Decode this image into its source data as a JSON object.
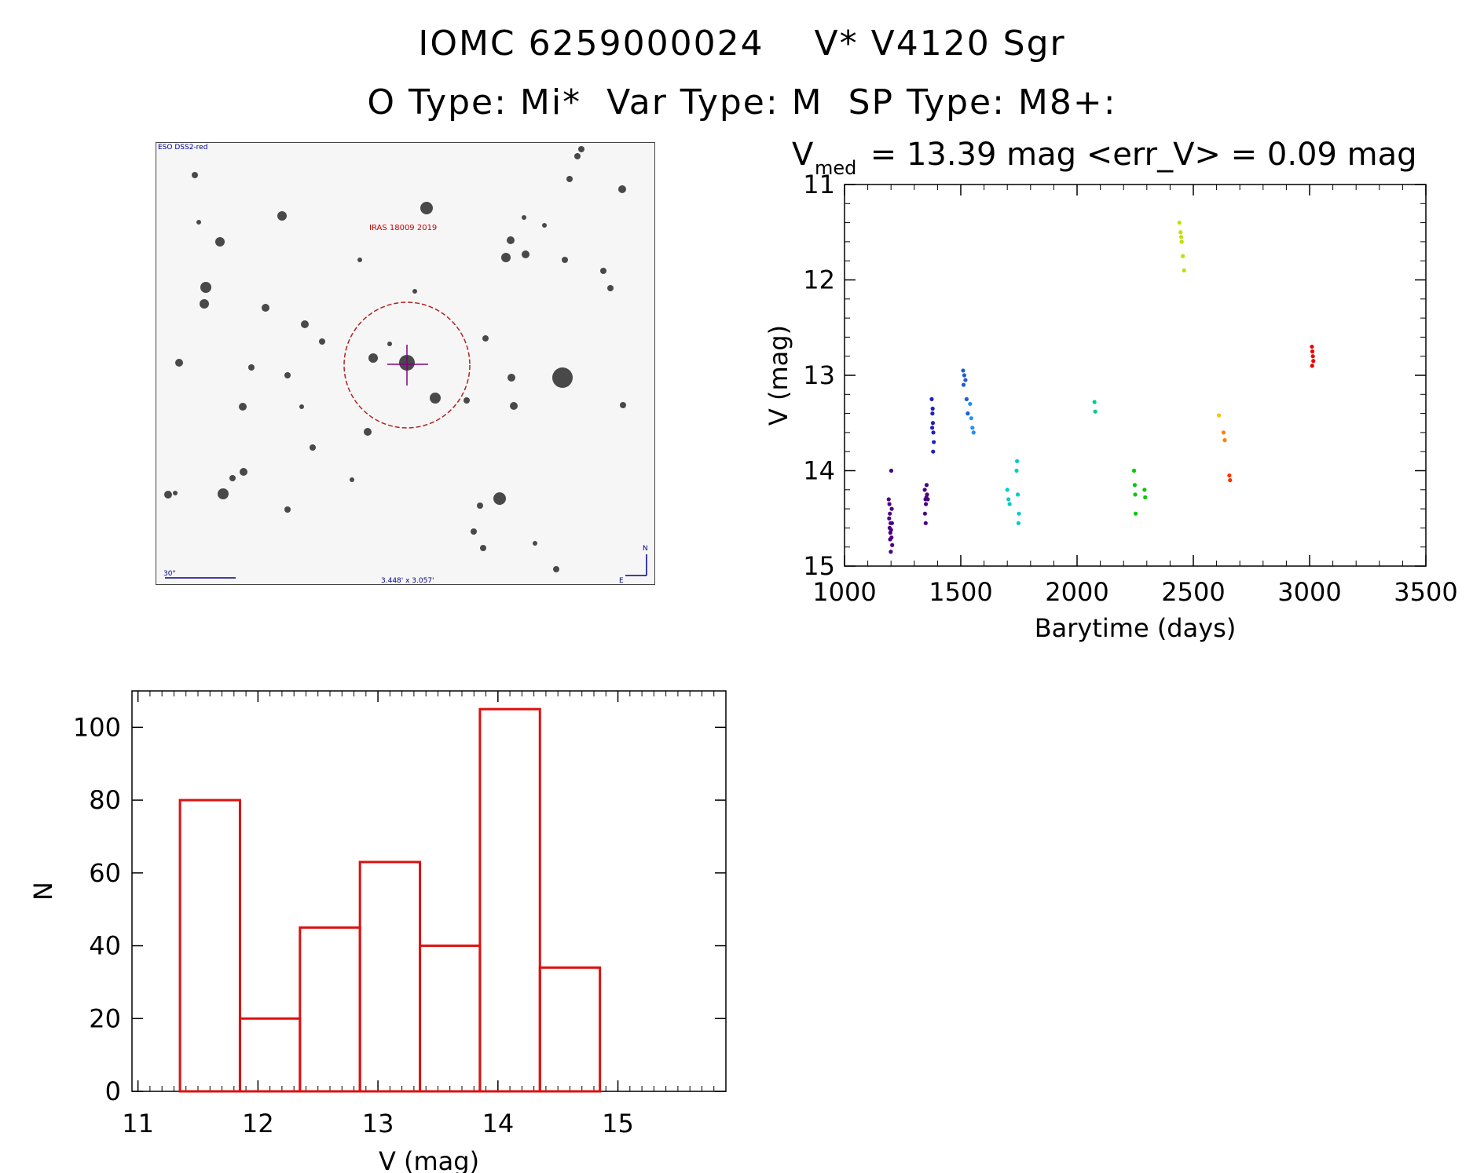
{
  "header": {
    "line1": "IOMC 6259000024    V* V4120 Sgr",
    "line2": "O Type: Mi*  Var Type: M  SP Type: M8+:"
  },
  "finder_chart": {
    "survey_label": "ESO DSS2-red",
    "target_label": "IRAS 18009 2019",
    "scale_label": "30\"",
    "fov_label": "3.448' x 3.057'",
    "north_label": "N",
    "east_label": "E",
    "colors": {
      "circle": "#b22222",
      "crosshair": "#800080",
      "labels": "#00008b",
      "target_text": "#cc0000"
    }
  },
  "chart_data": [
    {
      "type": "scatter",
      "title_main": "V",
      "title_sub": "med",
      "title_rest": " = 13.39 mag <err_V> = 0.09 mag",
      "xlabel": "Barytime (days)",
      "ylabel": "V (mag)",
      "xlim": [
        1000,
        3500
      ],
      "ylim": [
        15,
        11
      ],
      "xticks": [
        "1000",
        "1500",
        "2000",
        "2500",
        "3000",
        "3500"
      ],
      "yticks": [
        "11",
        "12",
        "13",
        "14",
        "15"
      ],
      "groups": [
        {
          "color": "#4b0082",
          "x": [
            1190,
            1195,
            1198,
            1200,
            1202,
            1205,
            1192,
            1197,
            1203,
            1199,
            1201,
            1194,
            1196,
            1204,
            1193
          ],
          "y": [
            14.3,
            14.45,
            14.55,
            14.62,
            14.7,
            14.78,
            14.5,
            14.65,
            14.4,
            14.85,
            14.0,
            14.6,
            14.72,
            14.55,
            14.35
          ]
        },
        {
          "color": "#4b0082",
          "x": [
            1345,
            1348,
            1350,
            1352,
            1355,
            1358,
            1346,
            1353,
            1349
          ],
          "y": [
            14.2,
            14.3,
            14.35,
            14.28,
            14.25,
            14.3,
            14.45,
            14.15,
            14.55
          ]
        },
        {
          "color": "#2020c0",
          "x": [
            1375,
            1378,
            1380,
            1382,
            1384,
            1377,
            1381,
            1379
          ],
          "y": [
            13.25,
            13.4,
            13.5,
            13.6,
            13.7,
            13.55,
            13.8,
            13.35
          ]
        },
        {
          "color": "#1e5fd0",
          "x": [
            1510,
            1515,
            1520,
            1525,
            1530,
            1512
          ],
          "y": [
            12.95,
            13.0,
            13.05,
            13.25,
            13.4,
            13.1
          ]
        },
        {
          "color": "#1e90ff",
          "x": [
            1540,
            1545,
            1550,
            1555
          ],
          "y": [
            13.3,
            13.45,
            13.55,
            13.6
          ]
        },
        {
          "color": "#00cccc",
          "x": [
            1700,
            1705,
            1710,
            1740,
            1745,
            1750,
            1748,
            1742
          ],
          "y": [
            14.2,
            14.3,
            14.35,
            14.0,
            14.25,
            14.45,
            14.55,
            13.9
          ]
        },
        {
          "color": "#00cc88",
          "x": [
            2075,
            2078
          ],
          "y": [
            13.28,
            13.38
          ]
        },
        {
          "color": "#00cc00",
          "x": [
            2245,
            2248,
            2250,
            2252,
            2290,
            2293
          ],
          "y": [
            14.0,
            14.15,
            14.25,
            14.45,
            14.2,
            14.28
          ]
        },
        {
          "color": "#c0e000",
          "x": [
            2440,
            2445,
            2450,
            2455,
            2460,
            2448
          ],
          "y": [
            11.4,
            11.5,
            11.6,
            11.75,
            11.9,
            11.55
          ]
        },
        {
          "color": "#ffc000",
          "x": [
            2610
          ],
          "y": [
            13.42
          ]
        },
        {
          "color": "#ff8000",
          "x": [
            2630,
            2635
          ],
          "y": [
            13.6,
            13.68
          ]
        },
        {
          "color": "#ff3300",
          "x": [
            2655,
            2658
          ],
          "y": [
            14.05,
            14.1
          ]
        },
        {
          "color": "#ee0000",
          "x": [
            3010,
            3012,
            3014,
            3016,
            3011
          ],
          "y": [
            12.7,
            12.75,
            12.8,
            12.85,
            12.9
          ]
        }
      ]
    },
    {
      "type": "bar",
      "xlabel": "V (mag)",
      "ylabel": "N",
      "xlim": [
        10.95,
        15.9
      ],
      "ylim": [
        0,
        110
      ],
      "xticks": [
        "11",
        "12",
        "13",
        "14",
        "15"
      ],
      "yticks": [
        "0",
        "20",
        "40",
        "60",
        "80",
        "100"
      ],
      "bar_color": "#dd1111",
      "bins": [
        {
          "from": 11.35,
          "to": 11.85,
          "count": 80
        },
        {
          "from": 11.85,
          "to": 12.35,
          "count": 20
        },
        {
          "from": 12.35,
          "to": 12.85,
          "count": 45
        },
        {
          "from": 12.85,
          "to": 13.35,
          "count": 63
        },
        {
          "from": 13.35,
          "to": 13.85,
          "count": 40
        },
        {
          "from": 13.85,
          "to": 14.35,
          "count": 105
        },
        {
          "from": 14.35,
          "to": 14.85,
          "count": 34
        }
      ]
    }
  ]
}
